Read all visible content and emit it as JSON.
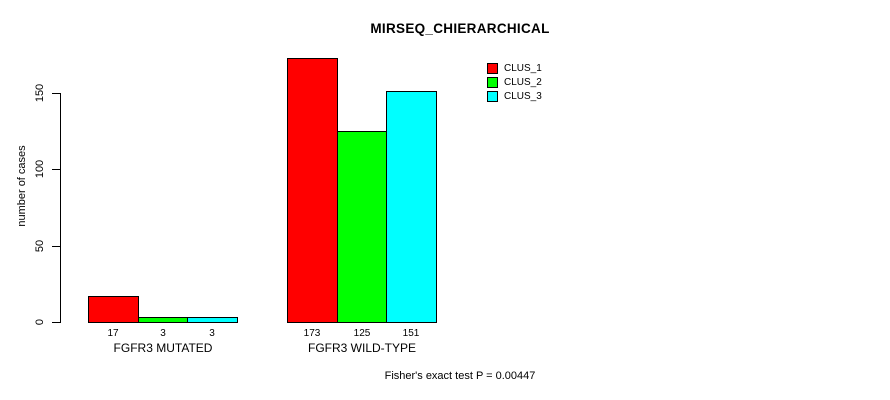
{
  "chart_data": {
    "type": "bar",
    "title": "MIRSEQ_CHIERARCHICAL",
    "xlabel": "",
    "ylabel": "number of cases",
    "footnote": "Fisher's exact test P = 0.00447",
    "categories": [
      "FGFR3 MUTATED",
      "FGFR3 WILD-TYPE"
    ],
    "series": [
      {
        "name": "CLUS_1",
        "color": "#ff0000",
        "values": [
          17,
          173
        ]
      },
      {
        "name": "CLUS_2",
        "color": "#00ff00",
        "values": [
          3,
          125
        ]
      },
      {
        "name": "CLUS_3",
        "color": "#00ffff",
        "values": [
          3,
          151
        ]
      }
    ],
    "yticks": [
      0,
      50,
      100,
      150
    ],
    "ylim": [
      0,
      175
    ],
    "grid": false,
    "legend_position": "top-right-inside",
    "bar_value_labels_shown": true,
    "bar_value_labels": [
      [
        "17",
        "3",
        "3"
      ],
      [
        "173",
        "125",
        "151"
      ]
    ]
  }
}
